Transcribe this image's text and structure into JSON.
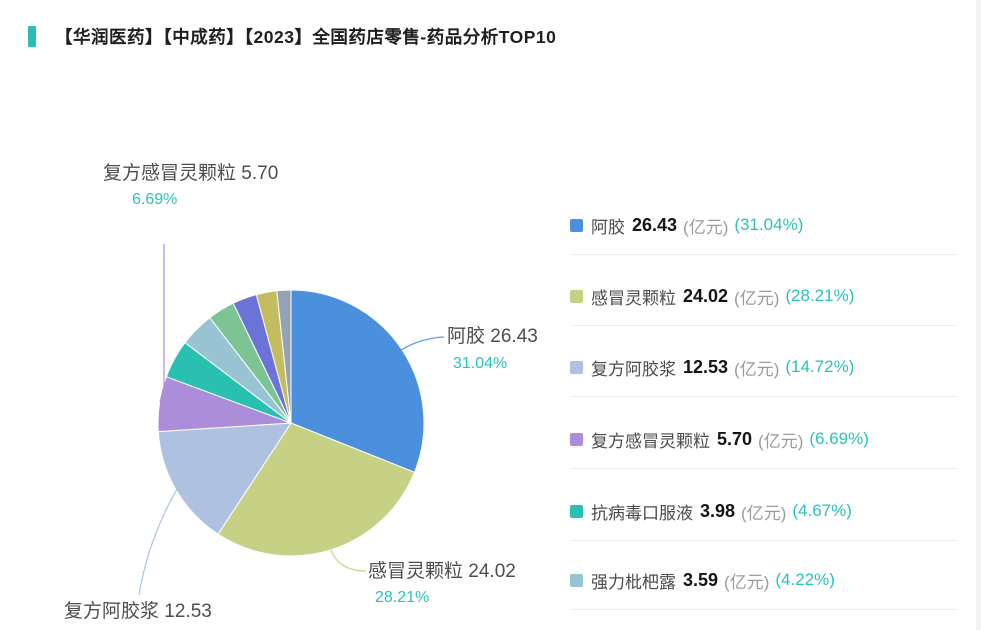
{
  "header": {
    "title": "【华润医药】【中成药】【2023】全国药店零售-药品分析TOP10",
    "accent_color": "#2BBDB4"
  },
  "colors": {
    "percent_teal": "#2AC2BB",
    "label_text": "#4D4D4D",
    "legend_name": "#4A4A4A",
    "legend_value": "#141414",
    "legend_unit": "#9C9C9C",
    "divider": "#EFEFEF",
    "background": "#FFFFFF"
  },
  "chart_data": {
    "type": "pie",
    "title": "【华润医药】【中成药】【2023】全国药店零售-药品分析TOP10",
    "unit": "亿元",
    "legend_position": "right",
    "start_angle_deg_clockwise_from_top": 0,
    "slices": [
      {
        "name": "阿胶",
        "value": "26.43",
        "pct": 31.04,
        "color": "#4A90DC",
        "labeled": true
      },
      {
        "name": "感冒灵颗粒",
        "value": "24.02",
        "pct": 28.21,
        "color": "#C6D185",
        "labeled": true
      },
      {
        "name": "复方阿胶浆",
        "value": "12.53",
        "pct": 14.72,
        "color": "#AEC1E0",
        "labeled": true
      },
      {
        "name": "复方感冒灵颗粒",
        "value": "5.70",
        "pct": 6.69,
        "color": "#AC8DD9",
        "labeled": true
      },
      {
        "name": "抗病毒口服液",
        "value": "3.98",
        "pct": 4.67,
        "color": "#29C0B1",
        "labeled": false
      },
      {
        "name": "强力枇杷露",
        "value": "3.59",
        "pct": 4.22,
        "color": "#97C3D3",
        "labeled": false
      },
      {
        "name": "",
        "value": "",
        "pct": 3.3,
        "color": "#7DC495",
        "labeled": false,
        "estimated": true
      },
      {
        "name": "",
        "value": "",
        "pct": 2.95,
        "color": "#6C73D8",
        "labeled": false,
        "estimated": true
      },
      {
        "name": "",
        "value": "",
        "pct": 2.5,
        "color": "#C3BD5F",
        "labeled": false,
        "estimated": true
      },
      {
        "name": "",
        "value": "",
        "pct": 1.7,
        "color": "#93A2B6",
        "labeled": false,
        "estimated": true
      }
    ],
    "legend_visible_items": 6,
    "legend_unit_text": "(亿元)",
    "callout_labels": [
      {
        "slice": 0,
        "line1": "阿胶 26.43",
        "pct_text": "31.04%"
      },
      {
        "slice": 1,
        "line1": "感冒灵颗粒 24.02",
        "pct_text": "28.21%"
      },
      {
        "slice": 2,
        "line1": "复方阿胶浆 12.53",
        "pct_text": ""
      },
      {
        "slice": 3,
        "line1": "复方感冒灵颗粒 5.70",
        "pct_text": "6.69%"
      }
    ]
  }
}
